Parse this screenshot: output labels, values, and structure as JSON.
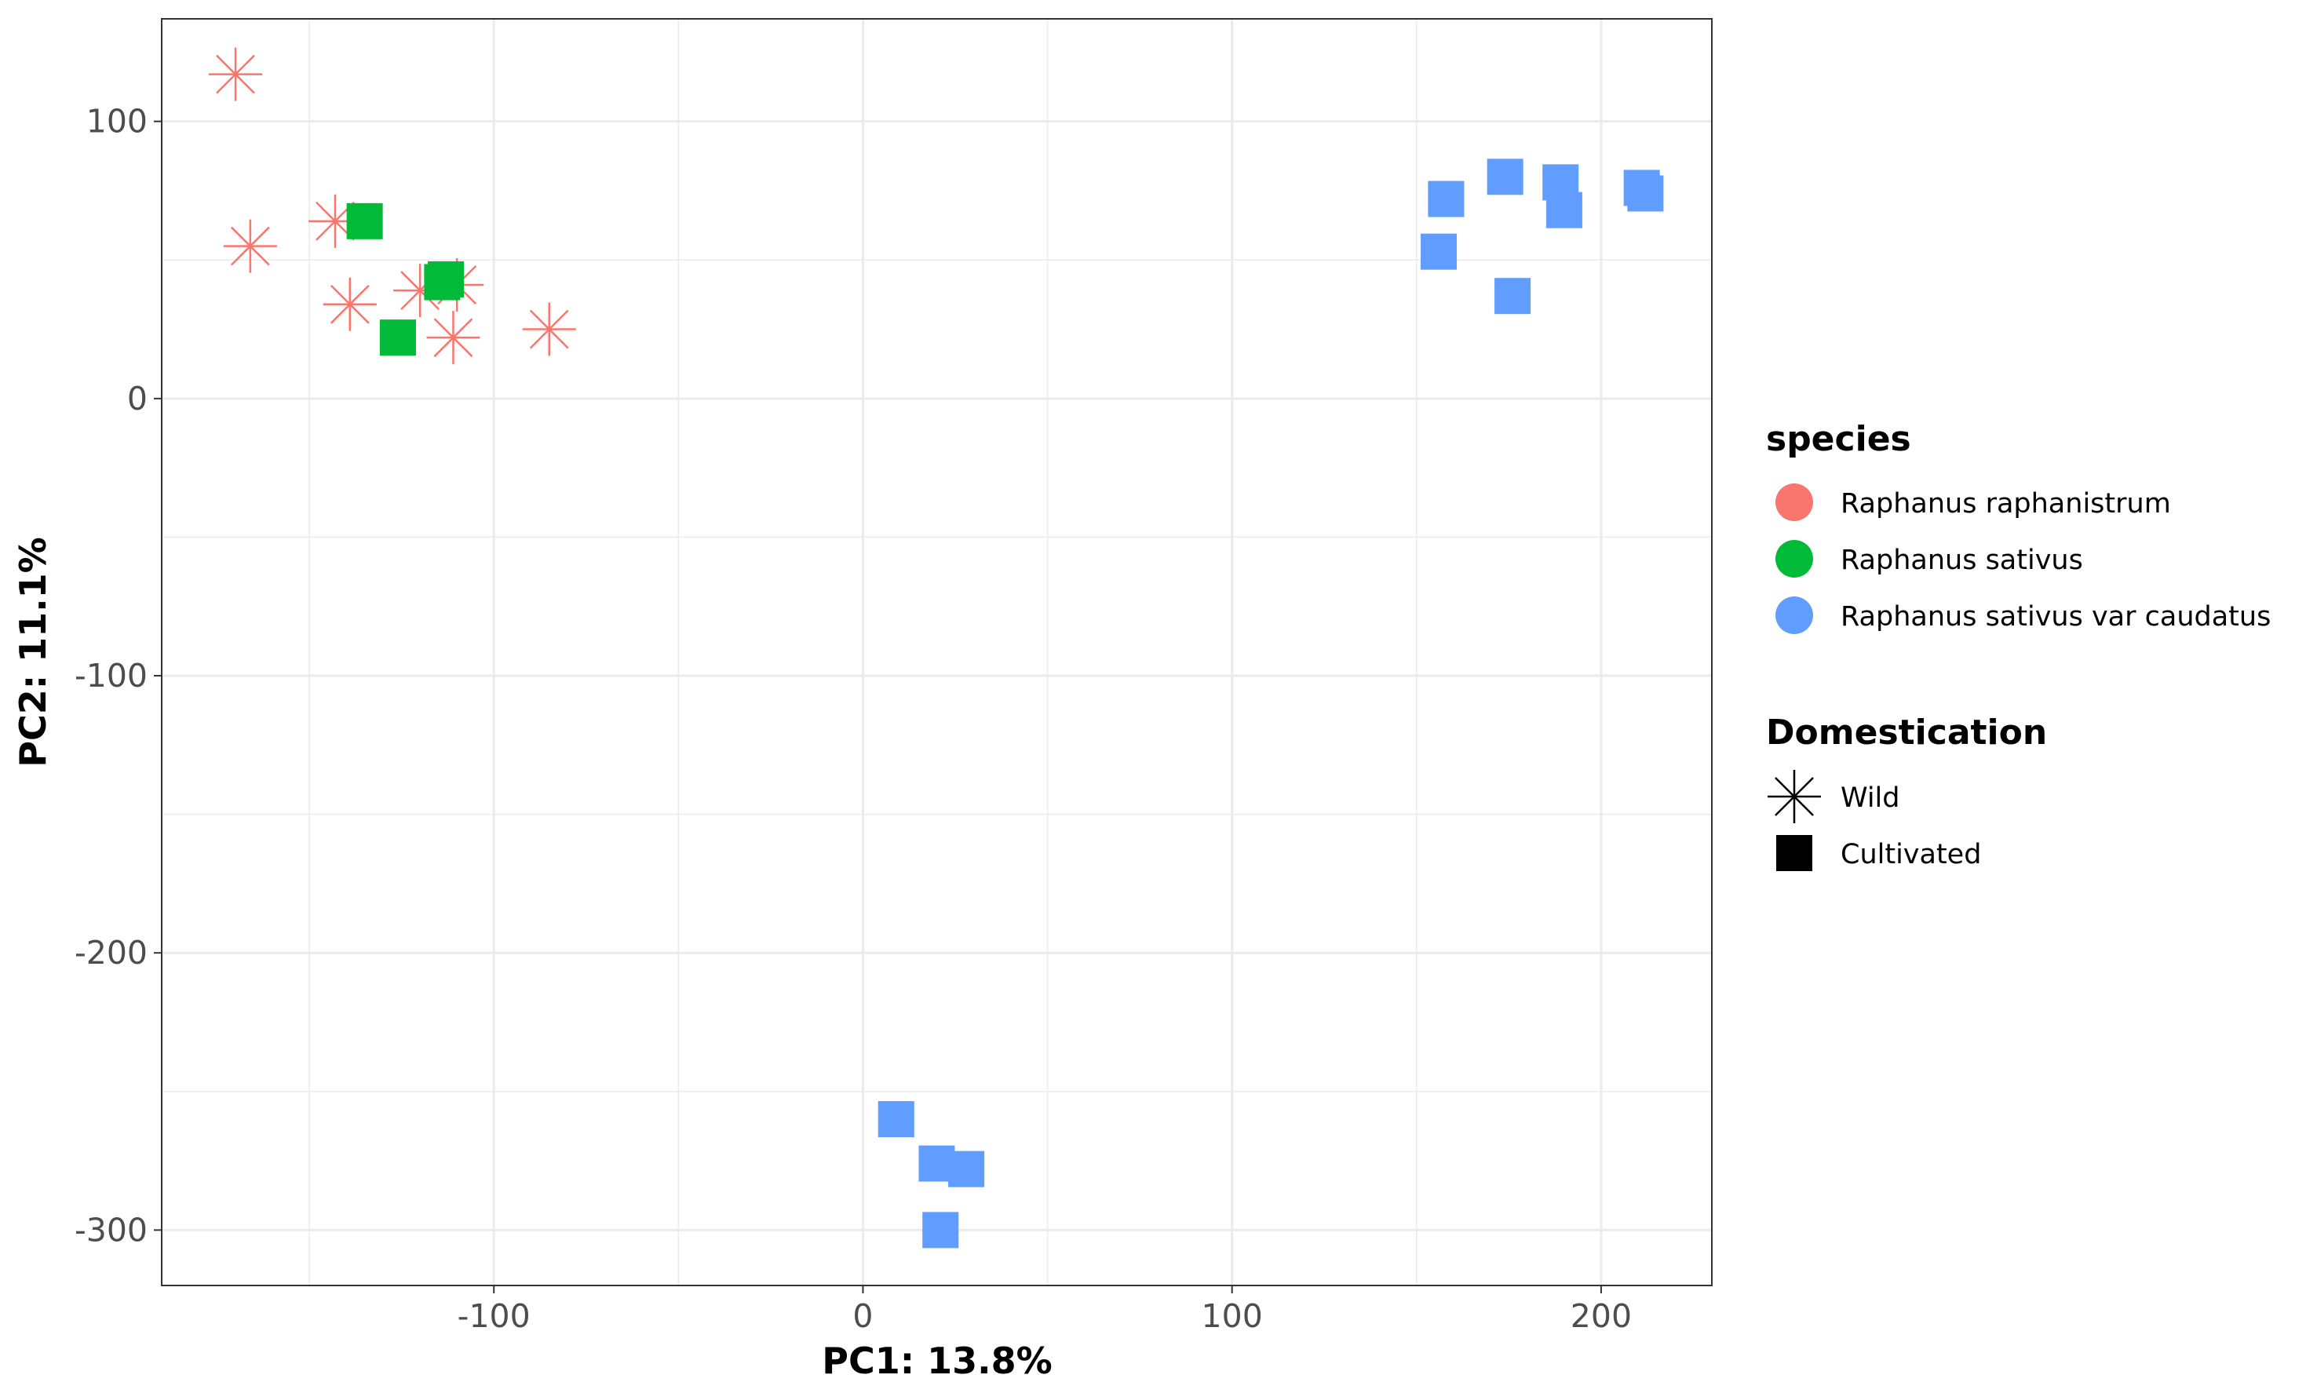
{
  "chart_data": {
    "type": "scatter",
    "xlabel": "PC1: 13.8%",
    "ylabel": "PC2: 11.1%",
    "xlim": [
      -190,
      230
    ],
    "ylim": [
      -320,
      137
    ],
    "x_ticks": [
      -100,
      0,
      100,
      200
    ],
    "x_tick_labels": [
      "-100",
      "0",
      "100",
      "200"
    ],
    "y_ticks": [
      -300,
      -200,
      -100,
      0,
      100
    ],
    "y_tick_labels": [
      "-300",
      "-200",
      "-100",
      "0",
      "100"
    ],
    "grid": true,
    "legend_position": "right",
    "colors": {
      "Raphanus raphanistrum": "#F8766D",
      "Raphanus sativus": "#00BA38",
      "Raphanus sativus var caudatus": "#619CFF"
    },
    "legends": [
      {
        "title": "species",
        "kind": "color",
        "entries": [
          {
            "label": "Raphanus raphanistrum",
            "color": "#F8766D"
          },
          {
            "label": "Raphanus sativus",
            "color": "#00BA38"
          },
          {
            "label": "Raphanus sativus var caudatus",
            "color": "#619CFF"
          }
        ]
      },
      {
        "title": "Domestication",
        "kind": "shape",
        "entries": [
          {
            "label": "Wild",
            "shape": "asterisk"
          },
          {
            "label": "Cultivated",
            "shape": "square"
          }
        ]
      }
    ],
    "points": [
      {
        "x": -170,
        "y": 117,
        "species": "Raphanus raphanistrum",
        "domestication": "Wild"
      },
      {
        "x": -166,
        "y": 55,
        "species": "Raphanus raphanistrum",
        "domestication": "Wild"
      },
      {
        "x": -143,
        "y": 64,
        "species": "Raphanus raphanistrum",
        "domestication": "Wild"
      },
      {
        "x": -139,
        "y": 34,
        "species": "Raphanus raphanistrum",
        "domestication": "Wild"
      },
      {
        "x": -120,
        "y": 39,
        "species": "Raphanus raphanistrum",
        "domestication": "Wild"
      },
      {
        "x": -111,
        "y": 22,
        "species": "Raphanus raphanistrum",
        "domestication": "Wild"
      },
      {
        "x": -110,
        "y": 41,
        "species": "Raphanus raphanistrum",
        "domestication": "Wild"
      },
      {
        "x": -85,
        "y": 25,
        "species": "Raphanus raphanistrum",
        "domestication": "Wild"
      },
      {
        "x": -135,
        "y": 64,
        "species": "Raphanus sativus",
        "domestication": "Cultivated"
      },
      {
        "x": -126,
        "y": 22,
        "species": "Raphanus sativus",
        "domestication": "Cultivated"
      },
      {
        "x": -114,
        "y": 42,
        "species": "Raphanus sativus",
        "domestication": "Cultivated"
      },
      {
        "x": -113,
        "y": 43,
        "species": "Raphanus sativus",
        "domestication": "Cultivated"
      },
      {
        "x": 156,
        "y": 53,
        "species": "Raphanus sativus var caudatus",
        "domestication": "Cultivated"
      },
      {
        "x": 158,
        "y": 72,
        "species": "Raphanus sativus var caudatus",
        "domestication": "Cultivated"
      },
      {
        "x": 174,
        "y": 80,
        "species": "Raphanus sativus var caudatus",
        "domestication": "Cultivated"
      },
      {
        "x": 176,
        "y": 37,
        "species": "Raphanus sativus var caudatus",
        "domestication": "Cultivated"
      },
      {
        "x": 189,
        "y": 78,
        "species": "Raphanus sativus var caudatus",
        "domestication": "Cultivated"
      },
      {
        "x": 190,
        "y": 68,
        "species": "Raphanus sativus var caudatus",
        "domestication": "Cultivated"
      },
      {
        "x": 211,
        "y": 76,
        "species": "Raphanus sativus var caudatus",
        "domestication": "Cultivated"
      },
      {
        "x": 212,
        "y": 74,
        "species": "Raphanus sativus var caudatus",
        "domestication": "Cultivated"
      },
      {
        "x": 9,
        "y": -260,
        "species": "Raphanus sativus var caudatus",
        "domestication": "Cultivated"
      },
      {
        "x": 20,
        "y": -276,
        "species": "Raphanus sativus var caudatus",
        "domestication": "Cultivated"
      },
      {
        "x": 28,
        "y": -278,
        "species": "Raphanus sativus var caudatus",
        "domestication": "Cultivated"
      },
      {
        "x": 21,
        "y": -300,
        "species": "Raphanus sativus var caudatus",
        "domestication": "Cultivated"
      }
    ]
  }
}
